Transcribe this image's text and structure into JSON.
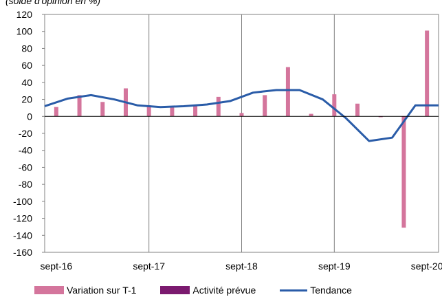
{
  "chart_data": {
    "type": "bar+line",
    "top_partial_text": "(solde d'opinion en %)",
    "xlabel": "",
    "ylabel": "",
    "ylim": [
      -160,
      120
    ],
    "y_ticks": [
      120,
      100,
      80,
      60,
      40,
      20,
      0,
      -20,
      -40,
      -60,
      -80,
      -100,
      -120,
      -140,
      -160
    ],
    "x_tick_labels": [
      "sept-16",
      "sept-17",
      "sept-18",
      "sept-19",
      "sept-20"
    ],
    "x_tick_positions": [
      0,
      4,
      8,
      12,
      16
    ],
    "x_range": [
      0,
      17
    ],
    "grid": true,
    "legend_position": "bottom",
    "series": [
      {
        "name": "Variation sur T-1",
        "kind": "bar",
        "color": "#d4759c",
        "x": [
          0,
          1,
          2,
          3,
          4,
          5,
          6,
          7,
          8,
          9,
          10,
          11,
          12,
          13,
          14,
          15,
          16
        ],
        "values": [
          11,
          25,
          17,
          33,
          13,
          11,
          12,
          23,
          4,
          25,
          58,
          3,
          26,
          15,
          -1,
          -131,
          101
        ]
      },
      {
        "name": "Activité prévue",
        "kind": "bar",
        "color": "#7b1a6f",
        "x": [],
        "values": []
      },
      {
        "name": "Tendance",
        "kind": "line",
        "color": "#2a5ca8",
        "x": [
          -0.5,
          0.5,
          1.5,
          2.5,
          3.5,
          4.5,
          5.5,
          6.5,
          7.5,
          8.5,
          9.5,
          10.5,
          11.5,
          12.5,
          13.5,
          14.5,
          15.5,
          16.5
        ],
        "values": [
          12,
          21,
          25,
          20,
          13,
          11,
          12,
          14,
          18,
          28,
          31,
          31,
          20,
          -2,
          -29,
          -25,
          13,
          13
        ]
      }
    ]
  }
}
